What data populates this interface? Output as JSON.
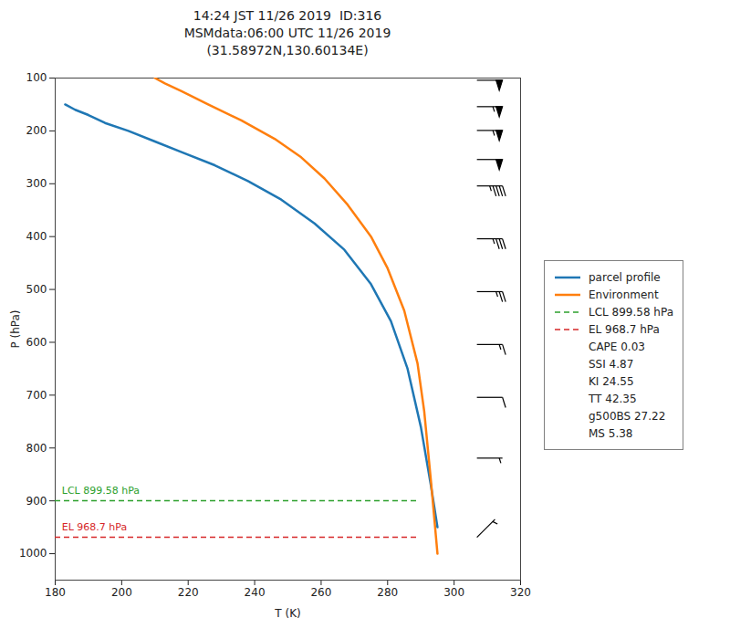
{
  "chart_data": {
    "type": "line",
    "title": "14:24 JST 11/26 2019  ID:316\nMSMdata:06:00 UTC 11/26 2019\n(31.58972N,130.60134E)",
    "xlabel": "T (K)",
    "ylabel": "P (hPa)",
    "xlim": [
      180,
      320
    ],
    "ylim": [
      1050,
      100
    ],
    "xticks": [
      180,
      200,
      220,
      240,
      260,
      280,
      300,
      320
    ],
    "yticks": [
      100,
      200,
      300,
      400,
      500,
      600,
      700,
      800,
      900,
      1000
    ],
    "grid": false,
    "legend": "right",
    "series": [
      {
        "name": "parcel profile",
        "type": "line",
        "color": "#1f77b4",
        "line_style": "solid",
        "x": [
          183,
          186,
          190,
          195,
          202,
          210,
          218,
          228,
          238,
          248,
          258,
          267,
          275,
          281,
          286,
          290,
          293,
          295
        ],
        "values": [
          150,
          160,
          170,
          185,
          200,
          220,
          240,
          265,
          295,
          330,
          375,
          425,
          490,
          560,
          650,
          760,
          870,
          950
        ]
      },
      {
        "name": "Environment",
        "type": "line",
        "color": "#ff7f0e",
        "line_style": "solid",
        "x": [
          210,
          213,
          218,
          226,
          236,
          246,
          254,
          261,
          268,
          275,
          280,
          285,
          289,
          291,
          293,
          295
        ],
        "values": [
          100,
          110,
          125,
          150,
          180,
          215,
          250,
          290,
          340,
          400,
          460,
          540,
          640,
          730,
          860,
          1000
        ]
      },
      {
        "name": "LCL 899.58 hPa",
        "type": "hline",
        "color": "#2ca02c",
        "line_style": "dashed",
        "values": [
          899.58
        ]
      },
      {
        "name": "EL 968.7 hPa",
        "type": "hline",
        "color": "#d62728",
        "line_style": "dashed",
        "values": [
          968.7
        ]
      }
    ],
    "annotations": [
      {
        "text": "LCL 899.58 hPa",
        "x": 182,
        "y": 887.58,
        "color": "#2ca02c"
      },
      {
        "text": "EL 968.7 hPa",
        "x": 182,
        "y": 956.7,
        "color": "#d62728"
      }
    ],
    "legend_texts": [
      "CAPE 0.03",
      "SSI 4.87",
      "KI 24.55",
      "TT 42.35",
      "g500BS 27.22",
      "MS 5.38"
    ],
    "barb_x": 307,
    "wind_barbs": [
      {
        "P": 105,
        "u": -50,
        "v": 0
      },
      {
        "P": 155,
        "u": -55,
        "v": 0
      },
      {
        "P": 200,
        "u": -55,
        "v": 0
      },
      {
        "P": 255,
        "u": -50,
        "v": 0
      },
      {
        "P": 305,
        "u": -45,
        "v": 0
      },
      {
        "P": 405,
        "u": -35,
        "v": 0
      },
      {
        "P": 505,
        "u": -25,
        "v": 0
      },
      {
        "P": 605,
        "u": -15,
        "v": 0
      },
      {
        "P": 705,
        "u": -10,
        "v": 0
      },
      {
        "P": 820,
        "u": -5,
        "v": 0
      },
      {
        "P": 970,
        "u": -5,
        "v": -5
      }
    ]
  }
}
